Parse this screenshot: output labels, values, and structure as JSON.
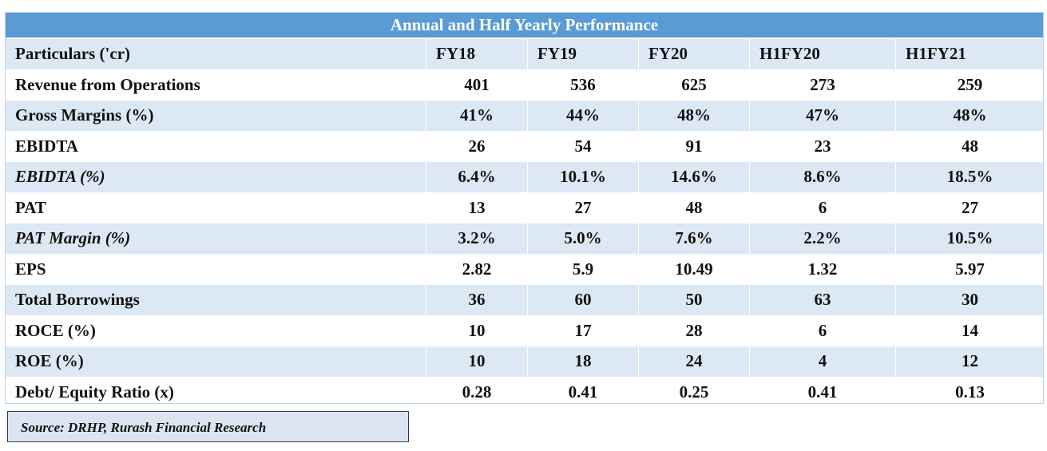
{
  "table": {
    "title": "Annual and Half Yearly Performance",
    "header": [
      "Particulars ('cr)",
      "FY18",
      "FY19",
      "FY20",
      "H1FY20",
      "H1FY21"
    ],
    "rows": [
      {
        "label": "Revenue from Operations",
        "italic": false,
        "values": [
          "401",
          "536",
          "625",
          "273",
          "259"
        ]
      },
      {
        "label": "Gross Margins (%)",
        "italic": false,
        "values": [
          "41%",
          "44%",
          "48%",
          "47%",
          "48%"
        ]
      },
      {
        "label": "EBIDTA",
        "italic": false,
        "values": [
          "26",
          "54",
          "91",
          "23",
          "48"
        ]
      },
      {
        "label": "EBIDTA (%)",
        "italic": true,
        "values": [
          "6.4%",
          "10.1%",
          "14.6%",
          "8.6%",
          "18.5%"
        ]
      },
      {
        "label": "PAT",
        "italic": false,
        "values": [
          "13",
          "27",
          "48",
          "6",
          "27"
        ]
      },
      {
        "label": "PAT Margin (%)",
        "italic": true,
        "values": [
          "3.2%",
          "5.0%",
          "7.6%",
          "2.2%",
          "10.5%"
        ]
      },
      {
        "label": "EPS",
        "italic": false,
        "values": [
          "2.82",
          "5.9",
          "10.49",
          "1.32",
          "5.97"
        ]
      },
      {
        "label": "Total Borrowings",
        "italic": false,
        "values": [
          "36",
          "60",
          "50",
          "63",
          "30"
        ]
      },
      {
        "label": "ROCE (%)",
        "italic": false,
        "values": [
          "10",
          "17",
          "28",
          "6",
          "14"
        ]
      },
      {
        "label": "ROE (%)",
        "italic": false,
        "values": [
          "10",
          "18",
          "24",
          "4",
          "12"
        ]
      },
      {
        "label": "Debt/ Equity Ratio (x)",
        "italic": false,
        "values": [
          "0.28",
          "0.41",
          "0.25",
          "0.41",
          "0.13"
        ]
      }
    ]
  },
  "source": "Source: DRHP, Rurash Financial Research",
  "colors": {
    "title_bar": "#5b9bd5",
    "row_shade": "#dde8f5",
    "source_box": "#dbe5f1"
  }
}
